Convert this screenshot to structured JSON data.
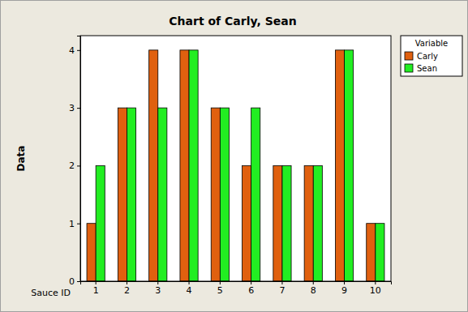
{
  "chart_data": {
    "type": "bar",
    "title": "Chart of Carly, Sean",
    "x_label": "Sauce ID",
    "y_label": "Data",
    "categories": [
      "1",
      "2",
      "3",
      "4",
      "5",
      "6",
      "7",
      "8",
      "9",
      "10"
    ],
    "series": [
      {
        "name": "Carly",
        "color": "#E0600F",
        "values": [
          1,
          3,
          4,
          4,
          3,
          2,
          2,
          2,
          4,
          1
        ]
      },
      {
        "name": "Sean",
        "color": "#22EE22",
        "values": [
          2,
          3,
          3,
          4,
          3,
          3,
          2,
          2,
          4,
          1
        ]
      }
    ],
    "ylim": [
      0,
      4.25
    ],
    "yticks": [
      0,
      1,
      2,
      3,
      4
    ],
    "grid": false,
    "legend": "right",
    "legend_title": "Variable"
  }
}
